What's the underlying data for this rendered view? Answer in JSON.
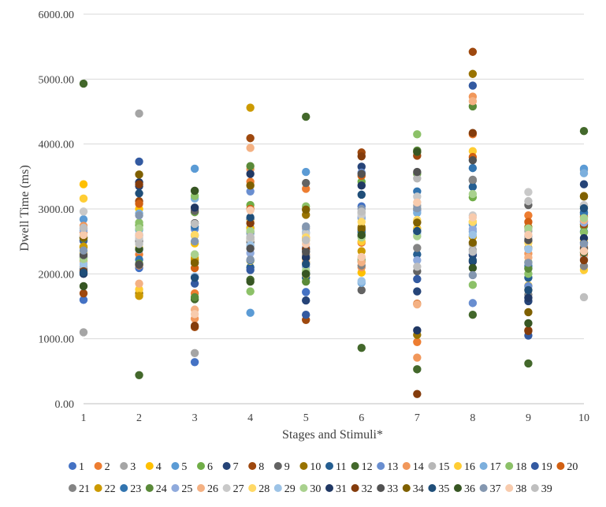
{
  "chart_data": {
    "type": "scatter",
    "title": "",
    "xlabel": "Stages and Stimuli*",
    "ylabel": "Dwell Time (ms)",
    "xlim": [
      1,
      10
    ],
    "ylim": [
      0,
      6000
    ],
    "y_ticks": [
      0,
      1000,
      2000,
      3000,
      4000,
      5000,
      6000
    ],
    "y_tick_labels": [
      "0.00",
      "1000.00",
      "2000.00",
      "3000.00",
      "4000.00",
      "5000.00",
      "6000.00"
    ],
    "x_ticks": [
      1,
      2,
      3,
      4,
      5,
      6,
      7,
      8,
      9,
      10
    ],
    "x_tick_labels": [
      "1",
      "2",
      "3",
      "4",
      "5",
      "6",
      "7",
      "8",
      "9",
      "10"
    ],
    "grid": "horizontal",
    "legend_position": "bottom",
    "series_colors": [
      "#4472C4",
      "#ED7D31",
      "#A5A5A5",
      "#FFC000",
      "#5B9BD5",
      "#70AD47",
      "#264478",
      "#9E480E",
      "#636363",
      "#997300",
      "#255E91",
      "#43682B",
      "#698ED0",
      "#F1975A",
      "#B7B7B7",
      "#FFCD33",
      "#7CAFDD",
      "#8CC168",
      "#335AA1",
      "#D26012",
      "#848484",
      "#CC9A00",
      "#3274AF",
      "#5A8A39",
      "#8FAADC",
      "#F4B183",
      "#C9C9C9",
      "#FFD966",
      "#9DC3E6",
      "#A9D18E",
      "#203864",
      "#843C0C",
      "#525252",
      "#7F6000",
      "#1F4E79",
      "#375623",
      "#8497B0",
      "#F8CBAD",
      "#BFBFBF"
    ],
    "series": [
      {
        "name": "1",
        "values": [
          1600,
          2090,
          640,
          2710,
          1720,
          3040,
          2660,
          2300,
          2500,
          2650
        ]
      },
      {
        "name": "2",
        "values": [
          2640,
          2300,
          1700,
          3420,
          3310,
          2480,
          950,
          4150,
          2900,
          2410
        ]
      },
      {
        "name": "3",
        "values": [
          1100,
          4470,
          780,
          2560,
          2700,
          2940,
          3050,
          2370,
          2660,
          3600
        ]
      },
      {
        "name": "4",
        "values": [
          3380,
          3000,
          2470,
          2700,
          2520,
          2020,
          3000,
          2800,
          1820,
          2380
        ]
      },
      {
        "name": "5",
        "values": [
          2840,
          2680,
          3620,
          1400,
          3570,
          2860,
          2700,
          2760,
          2580,
          3620
        ]
      },
      {
        "name": "6",
        "values": [
          2200,
          2750,
          2950,
          3060,
          2180,
          3420,
          3540,
          3180,
          2180,
          2730
        ]
      },
      {
        "name": "7",
        "values": [
          2520,
          3350,
          2170,
          2840,
          1590,
          3650,
          1730,
          2290,
          1580,
          3380
        ]
      },
      {
        "name": "8",
        "values": [
          1700,
          3120,
          1180,
          4090,
          1290,
          3870,
          3820,
          5420,
          1130,
          2760
        ]
      },
      {
        "name": "9",
        "values": [
          2250,
          2140,
          2970,
          2490,
          3400,
          1750,
          2040,
          3440,
          3060,
          2950
        ]
      },
      {
        "name": "10",
        "values": [
          2410,
          1700,
          2210,
          2530,
          2910,
          2720,
          1060,
          5080,
          2720,
          3200
        ]
      },
      {
        "name": "11",
        "values": [
          2080,
          2400,
          1950,
          2100,
          1940,
          2640,
          2300,
          3340,
          1940,
          2810
        ]
      },
      {
        "name": "12",
        "values": [
          4930,
          440,
          1610,
          1910,
          4420,
          860,
          530,
          1370,
          620,
          4200
        ]
      },
      {
        "name": "13",
        "values": [
          2700,
          2590,
          2690,
          3270,
          2400,
          3560,
          2980,
          1550,
          1810,
          2920
        ]
      },
      {
        "name": "14",
        "values": [
          2740,
          2130,
          1310,
          3610,
          2300,
          2100,
          710,
          4730,
          2310,
          2290
        ]
      },
      {
        "name": "15",
        "values": [
          2110,
          2520,
          3280,
          2420,
          2030,
          2240,
          3470,
          2450,
          2550,
          2230
        ]
      },
      {
        "name": "16",
        "values": [
          3160,
          1760,
          2260,
          2200,
          1990,
          2500,
          2700,
          3890,
          1750,
          2060
        ]
      },
      {
        "name": "17",
        "values": [
          2580,
          2930,
          3160,
          2620,
          2640,
          1860,
          2940,
          2650,
          2090,
          3550
        ]
      },
      {
        "name": "18",
        "values": [
          2330,
          2790,
          3200,
          1730,
          3040,
          2220,
          4150,
          1830,
          2000,
          2640
        ]
      },
      {
        "name": "19",
        "values": [
          2510,
          3730,
          1850,
          2060,
          1370,
          2580,
          1920,
          4900,
          1050,
          2480
        ]
      },
      {
        "name": "20",
        "values": [
          2550,
          3080,
          2090,
          3000,
          2560,
          3510,
          1540,
          3800,
          2800,
          2880
        ]
      },
      {
        "name": "21",
        "values": [
          2260,
          2500,
          2590,
          2650,
          2280,
          2130,
          2400,
          3450,
          1680,
          2120
        ]
      },
      {
        "name": "22",
        "values": [
          2420,
          1660,
          2230,
          4560,
          2240,
          2350,
          3880,
          2570,
          2400,
          2530
        ]
      },
      {
        "name": "23",
        "values": [
          2560,
          2220,
          2730,
          2210,
          2000,
          2660,
          3270,
          3630,
          2120,
          2940
        ]
      },
      {
        "name": "24",
        "values": [
          2550,
          2160,
          1640,
          3660,
          1880,
          2190,
          3900,
          4580,
          2080,
          3040
        ]
      },
      {
        "name": "25",
        "values": [
          2670,
          2370,
          2300,
          2320,
          2110,
          2880,
          2210,
          2690,
          2390,
          2790
        ]
      },
      {
        "name": "26",
        "values": [
          2180,
          1850,
          1450,
          3940,
          2180,
          2180,
          1530,
          4660,
          2250,
          2830
        ]
      },
      {
        "name": "27",
        "values": [
          2960,
          2550,
          2600,
          2530,
          2620,
          2910,
          3190,
          2900,
          3260,
          3060
        ]
      },
      {
        "name": "28",
        "values": [
          2310,
          2410,
          2600,
          2810,
          2560,
          2800,
          2830,
          2800,
          2480,
          2530
        ]
      },
      {
        "name": "29",
        "values": [
          2150,
          2610,
          1960,
          2440,
          2350,
          1890,
          2620,
          2600,
          2380,
          2210
        ]
      },
      {
        "name": "30",
        "values": [
          2230,
          2700,
          2300,
          2660,
          2050,
          2560,
          2580,
          3230,
          2700,
          2860
        ]
      },
      {
        "name": "31",
        "values": [
          2000,
          3410,
          3020,
          3540,
          2250,
          3360,
          1130,
          2190,
          1630,
          2550
        ]
      },
      {
        "name": "32",
        "values": [
          2040,
          3380,
          1200,
          2780,
          2380,
          3810,
          150,
          4170,
          1120,
          2210
        ]
      },
      {
        "name": "33",
        "values": [
          2290,
          2140,
          2780,
          2390,
          2340,
          3540,
          3570,
          3750,
          2520,
          2390
        ]
      },
      {
        "name": "34",
        "values": [
          2560,
          3530,
          2170,
          3360,
          2990,
          2690,
          2790,
          2480,
          1410,
          3190
        ]
      },
      {
        "name": "35",
        "values": [
          2020,
          3240,
          1940,
          2870,
          2150,
          3220,
          2660,
          2210,
          1750,
          3010
        ]
      },
      {
        "name": "36",
        "values": [
          1810,
          2380,
          3280,
          1880,
          2000,
          2600,
          3880,
          2090,
          1240,
          2330
        ]
      },
      {
        "name": "37",
        "values": [
          2360,
          2900,
          2500,
          2220,
          2730,
          3000,
          3010,
          1980,
          2170,
          2460
        ]
      },
      {
        "name": "38",
        "values": [
          2600,
          2600,
          1380,
          2980,
          2460,
          2260,
          3100,
          2870,
          2600,
          2350
        ]
      },
      {
        "name": "39",
        "values": [
          2710,
          2460,
          2770,
          2570,
          2520,
          2960,
          2110,
          2340,
          3120,
          1640
        ]
      }
    ]
  }
}
